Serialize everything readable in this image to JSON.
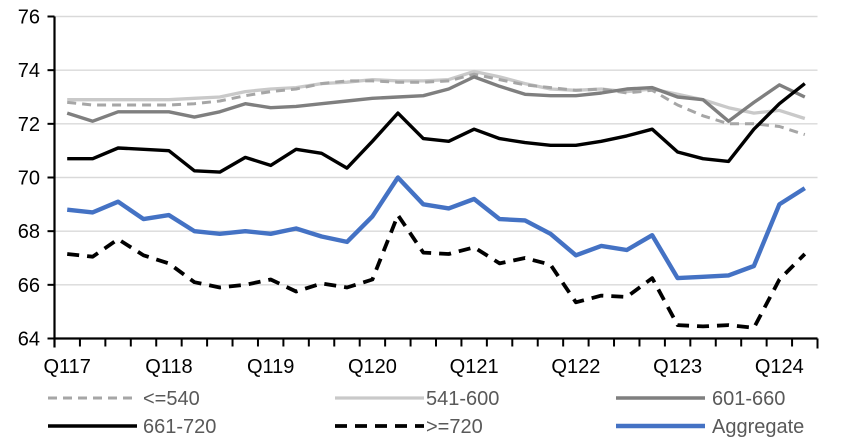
{
  "chart_data": {
    "type": "line",
    "title": "",
    "xlabel": "",
    "ylabel": "",
    "ylim": [
      64,
      76
    ],
    "yticks": [
      64,
      66,
      68,
      70,
      72,
      74,
      76
    ],
    "grid": "horizontal",
    "grid_color": "#d9d9d9",
    "axis_color": "#000000",
    "tick_label_color": "#000000",
    "legend_text_color": "#595959",
    "legend_position": "bottom",
    "categories": [
      "Q117",
      "Q217",
      "Q317",
      "Q417",
      "Q118",
      "Q218",
      "Q318",
      "Q418",
      "Q119",
      "Q219",
      "Q319",
      "Q419",
      "Q120",
      "Q220",
      "Q320",
      "Q420",
      "Q121",
      "Q221",
      "Q321",
      "Q421",
      "Q122",
      "Q222",
      "Q322",
      "Q422",
      "Q123",
      "Q223",
      "Q323",
      "Q423",
      "Q124",
      "Q224"
    ],
    "x_label_indices": [
      0,
      4,
      8,
      12,
      16,
      20,
      24,
      28
    ],
    "x_labels_shown": [
      "Q117",
      "Q118",
      "Q119",
      "Q120",
      "Q121",
      "Q122",
      "Q123",
      "Q124"
    ],
    "draw_order": [
      1,
      0,
      2,
      3,
      4,
      5
    ],
    "series": [
      {
        "name": "<=540",
        "color": "#a6a6a6",
        "style": "dashed",
        "dash": [
          9,
          6
        ],
        "width": 3,
        "values": [
          72.8,
          72.7,
          72.7,
          72.7,
          72.7,
          72.75,
          72.85,
          73.05,
          73.2,
          73.3,
          73.5,
          73.6,
          73.6,
          73.55,
          73.55,
          73.6,
          73.85,
          73.65,
          73.45,
          73.35,
          73.25,
          73.3,
          73.15,
          73.25,
          72.7,
          72.3,
          72.0,
          72.0,
          71.9,
          71.6
        ]
      },
      {
        "name": "541-600",
        "color": "#c9c9c9",
        "style": "solid",
        "dash": null,
        "width": 3.3,
        "values": [
          72.9,
          72.9,
          72.9,
          72.9,
          72.9,
          72.95,
          73.0,
          73.2,
          73.3,
          73.35,
          73.5,
          73.55,
          73.65,
          73.6,
          73.6,
          73.65,
          73.95,
          73.75,
          73.5,
          73.3,
          73.25,
          73.3,
          73.2,
          73.3,
          73.1,
          72.9,
          72.6,
          72.4,
          72.5,
          72.2
        ]
      },
      {
        "name": "601-660",
        "color": "#7f7f7f",
        "style": "solid",
        "dash": null,
        "width": 3.4,
        "values": [
          72.4,
          72.1,
          72.45,
          72.45,
          72.45,
          72.25,
          72.45,
          72.75,
          72.6,
          72.65,
          72.75,
          72.85,
          72.95,
          73.0,
          73.05,
          73.3,
          73.75,
          73.4,
          73.1,
          73.05,
          73.05,
          73.15,
          73.3,
          73.35,
          73.0,
          72.9,
          72.1,
          72.8,
          73.45,
          73.0
        ]
      },
      {
        "name": "661-720",
        "color": "#000000",
        "style": "solid",
        "dash": null,
        "width": 3.4,
        "values": [
          70.7,
          70.7,
          71.1,
          71.05,
          71.0,
          70.25,
          70.2,
          70.75,
          70.45,
          71.05,
          70.9,
          70.35,
          71.35,
          72.4,
          71.45,
          71.35,
          71.8,
          71.45,
          71.3,
          71.2,
          71.2,
          71.35,
          71.55,
          71.8,
          70.95,
          70.7,
          70.6,
          71.8,
          72.75,
          73.5
        ]
      },
      {
        "name": ">=720",
        "color": "#000000",
        "style": "dashed",
        "dash": [
          12,
          8
        ],
        "width": 3.8,
        "values": [
          67.15,
          67.05,
          67.7,
          67.1,
          66.8,
          66.1,
          65.9,
          66.0,
          66.2,
          65.75,
          66.05,
          65.9,
          66.2,
          68.6,
          67.2,
          67.15,
          67.4,
          66.8,
          67.0,
          66.75,
          65.35,
          65.6,
          65.55,
          66.25,
          64.5,
          64.45,
          64.5,
          64.4,
          66.2,
          67.15
        ]
      },
      {
        "name": "Aggregate",
        "color": "#4472c4",
        "style": "solid",
        "dash": null,
        "width": 4.4,
        "values": [
          68.8,
          68.7,
          69.1,
          68.45,
          68.6,
          68.0,
          67.9,
          68.0,
          67.9,
          68.1,
          67.8,
          67.6,
          68.55,
          70.0,
          69.0,
          68.85,
          69.2,
          68.45,
          68.4,
          67.9,
          67.1,
          67.45,
          67.3,
          67.85,
          66.25,
          66.3,
          66.35,
          66.7,
          69.0,
          69.6
        ]
      }
    ]
  }
}
